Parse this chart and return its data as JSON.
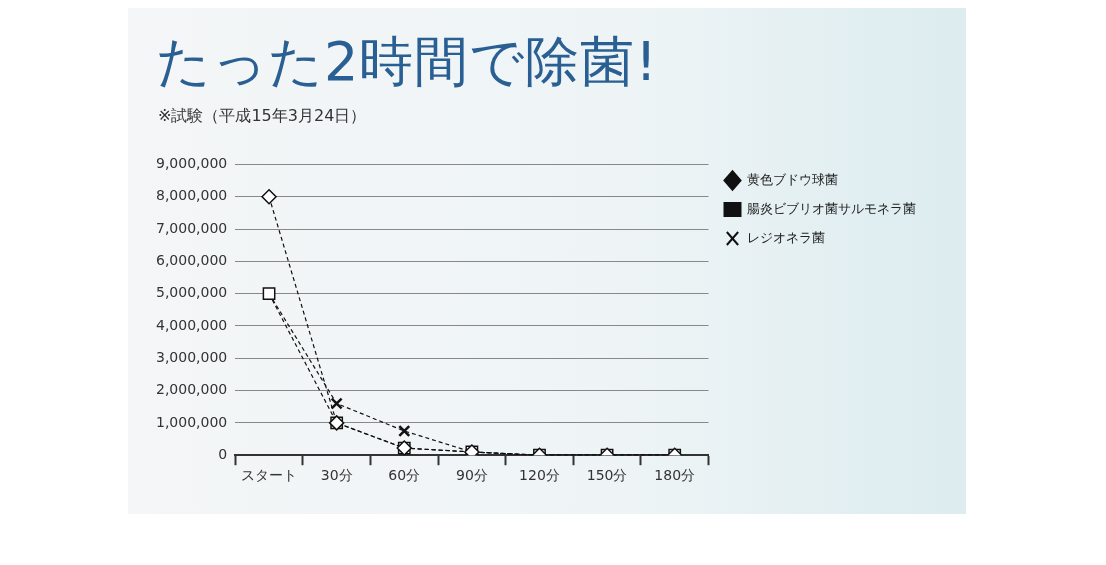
{
  "chart_data": {
    "type": "line",
    "title": "たった2時間で除菌!",
    "subtitle": "※試験（平成15年3月24日）",
    "categories": [
      "スタート",
      "30分",
      "60分",
      "90分",
      "120分",
      "150分",
      "180分"
    ],
    "series": [
      {
        "name": "黄色ブドウ球菌",
        "color": "#111111",
        "marker": "diamond",
        "values": [
          8000000,
          1000000,
          220000,
          100000,
          0,
          0,
          0
        ]
      },
      {
        "name": "腸炎ビブリオ菌サルモネラ菌",
        "color": "#111111",
        "marker": "square",
        "values": [
          5000000,
          1000000,
          220000,
          100000,
          0,
          0,
          0
        ]
      },
      {
        "name": "レジオネラ菌",
        "color": "#111111",
        "marker": "cross",
        "values": [
          5000000,
          1600000,
          750000,
          100000,
          0,
          0,
          0
        ]
      }
    ],
    "ylim": [
      0,
      9000000
    ],
    "yticks": [
      0,
      {
        "value": 1000000,
        "label": "1,000,000"
      },
      {
        "value": 2000000,
        "label": "2,000,000"
      },
      {
        "value": 3000000,
        "label": "3,000,000"
      },
      {
        "value": 4000000,
        "label": "4,000,000"
      },
      {
        "value": 5000000,
        "label": "5,000,000"
      },
      {
        "value": 6000000,
        "label": "6,000,000"
      },
      {
        "value": 7000000,
        "label": "7,000,000"
      },
      {
        "value": 8000000,
        "label": "8,000,000"
      },
      {
        "value": 9000000,
        "label": "9,000,000"
      }
    ],
    "grid": "y",
    "legend": "top right",
    "line_style": "dashed"
  }
}
